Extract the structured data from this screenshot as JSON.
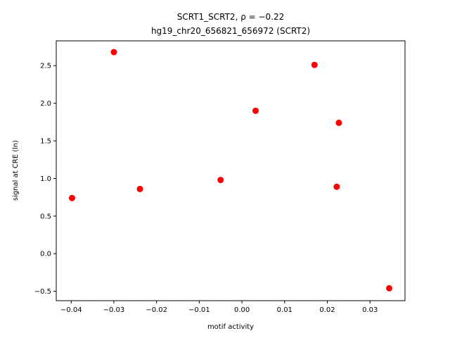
{
  "chart_data": {
    "type": "scatter",
    "title_line1": "SCRT1_SCRT2, ρ = −0.22",
    "title_line2": "hg19_chr20_656821_656972 (SCRT2)",
    "xlabel": "motif activity",
    "ylabel": "signal at CRE (ln)",
    "xlim": [
      -0.0435,
      0.0382
    ],
    "ylim": [
      -0.625,
      2.83
    ],
    "grid": false,
    "marker_color": "#ff0000",
    "x_ticks": [
      {
        "value": -0.04,
        "label": "−0.04"
      },
      {
        "value": -0.03,
        "label": "−0.03"
      },
      {
        "value": -0.02,
        "label": "−0.02"
      },
      {
        "value": -0.01,
        "label": "−0.01"
      },
      {
        "value": 0.0,
        "label": "0.00"
      },
      {
        "value": 0.01,
        "label": "0.01"
      },
      {
        "value": 0.02,
        "label": "0.02"
      },
      {
        "value": 0.03,
        "label": "0.03"
      }
    ],
    "y_ticks": [
      {
        "value": -0.5,
        "label": "−0.5"
      },
      {
        "value": 0.0,
        "label": "0.0"
      },
      {
        "value": 0.5,
        "label": "0.5"
      },
      {
        "value": 1.0,
        "label": "1.0"
      },
      {
        "value": 1.5,
        "label": "1.5"
      },
      {
        "value": 2.0,
        "label": "2.0"
      },
      {
        "value": 2.5,
        "label": "2.5"
      }
    ],
    "points": [
      {
        "x": -0.0398,
        "y": 0.74
      },
      {
        "x": -0.03,
        "y": 2.68
      },
      {
        "x": -0.0239,
        "y": 0.86
      },
      {
        "x": -0.005,
        "y": 0.98
      },
      {
        "x": 0.0032,
        "y": 1.9
      },
      {
        "x": 0.017,
        "y": 2.51
      },
      {
        "x": 0.0222,
        "y": 0.89
      },
      {
        "x": 0.0227,
        "y": 1.74
      },
      {
        "x": 0.0345,
        "y": -0.46
      }
    ]
  }
}
